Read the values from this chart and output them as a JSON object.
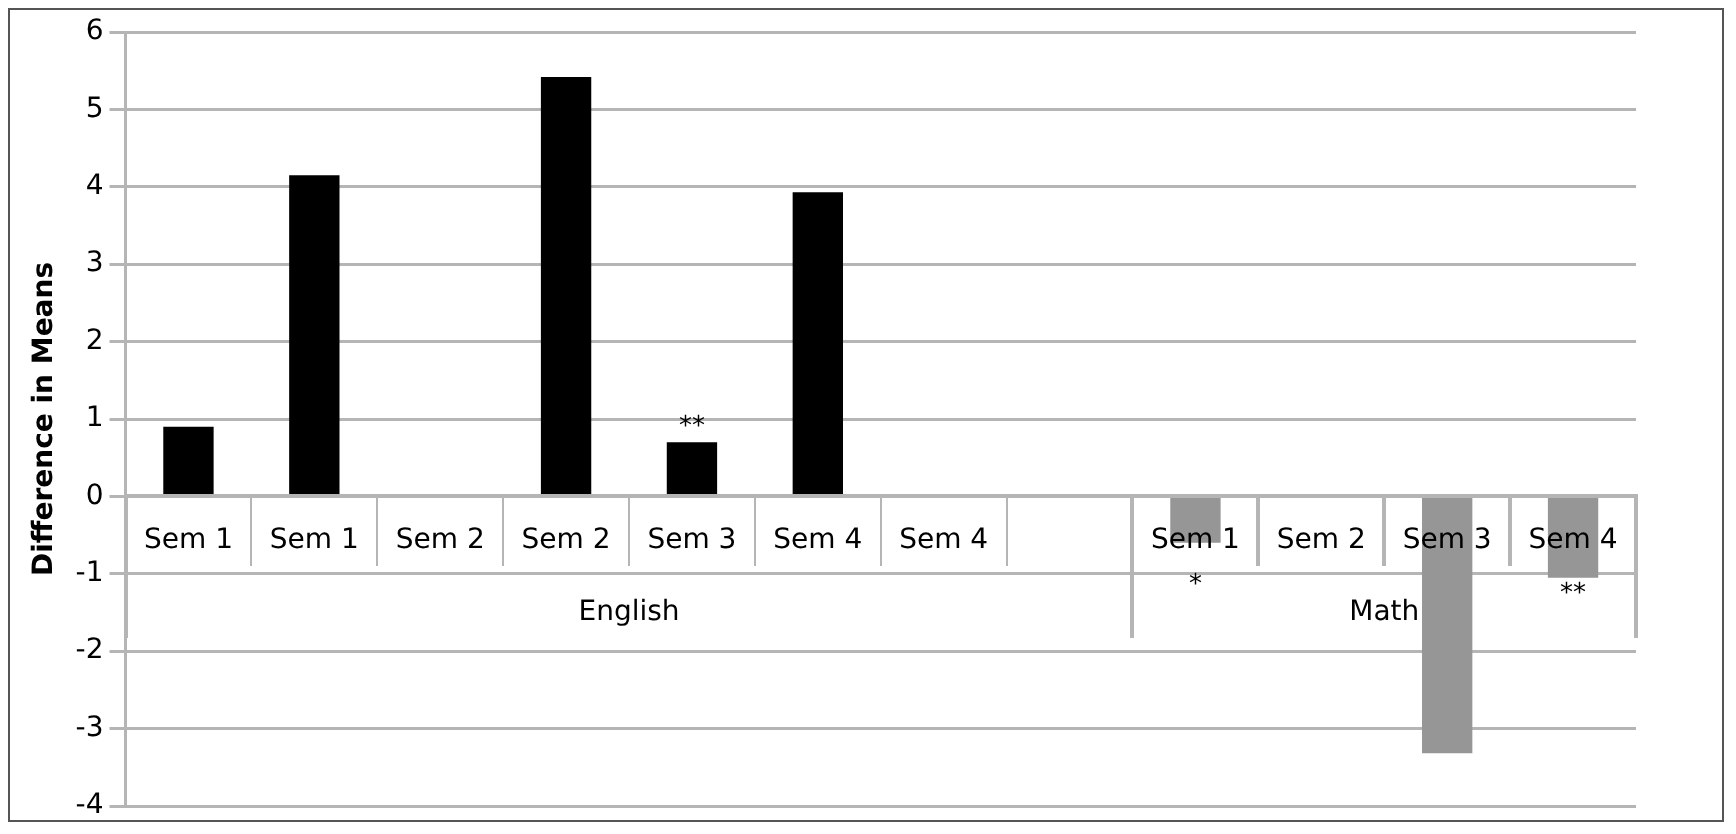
{
  "chart_data": {
    "type": "bar",
    "categories": [
      "Sem 1",
      "Sem 1",
      "Sem 2",
      "Sem 2",
      "Sem 3",
      "Sem 4",
      "Sem 4",
      null,
      "Sem 1",
      "Sem 2",
      "Sem 3",
      "Sem 4"
    ],
    "series": [
      {
        "color": "#000000",
        "values": [
          0.9,
          4.15,
          null,
          5.42,
          0.7,
          3.93,
          null,
          null,
          null,
          null,
          null,
          null
        ],
        "value_labels": [
          null,
          null,
          null,
          null,
          "**",
          null,
          null,
          null,
          null,
          null,
          null,
          null
        ]
      },
      {
        "color": "#969696",
        "values": [
          null,
          null,
          null,
          null,
          null,
          null,
          null,
          null,
          -0.6,
          null,
          -3.32,
          -1.05
        ],
        "value_labels": [
          null,
          null,
          null,
          null,
          null,
          null,
          null,
          null,
          "*",
          null,
          null,
          "**"
        ]
      }
    ],
    "ylabel": "Difference in Means",
    "ylim": [
      -4,
      6
    ],
    "yticks": [
      -4,
      -3,
      -2,
      -1,
      0,
      1,
      2,
      3,
      4,
      5,
      6
    ],
    "grid": "y",
    "legend": false,
    "annotations": [
      "English",
      "Math"
    ]
  }
}
